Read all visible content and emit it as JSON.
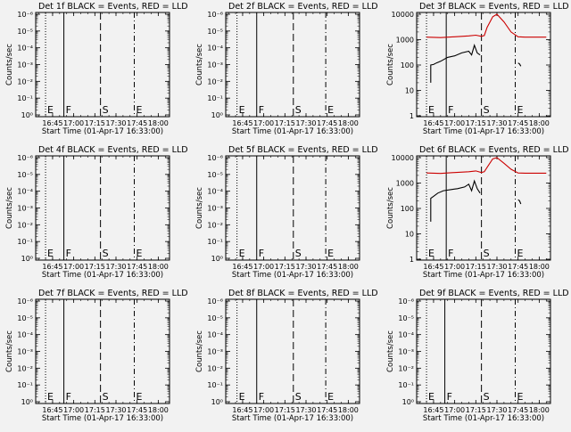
{
  "time_ticks": [
    "16:45",
    "17:00",
    "17:15",
    "17:30",
    "17:45",
    "18:00"
  ],
  "xlabel": "Start Time (01-Apr-17 16:33:00)",
  "ylabel": "Counts/sec",
  "colors": {
    "background": "#f2f2f2",
    "events": "#000000",
    "lld": "#cc0000"
  },
  "marker_line_styles": {
    "E1": "dotted",
    "F": "solid",
    "S": "dashed",
    "E2": "dash-dot"
  },
  "chart_data": [
    {
      "type": "line",
      "title": "Det 1f BLACK = Events, RED = LLD",
      "xlabel": "Start Time (01-Apr-17 16:33:00)",
      "ylabel": "Counts/sec",
      "y_scale": "log",
      "yticklabels": [
        "10⁰",
        "10⁻¹",
        "10⁻²",
        "10⁻³",
        "10⁻⁴",
        "10⁻⁵",
        "10⁻⁶"
      ],
      "markers": [
        {
          "label": "E",
          "time": "16:40"
        },
        {
          "label": "F",
          "time": "16:53"
        },
        {
          "label": "S",
          "time": "17:19"
        },
        {
          "label": "E",
          "time": "17:43"
        }
      ],
      "series": []
    },
    {
      "type": "line",
      "title": "Det 2f BLACK = Events, RED = LLD",
      "xlabel": "Start Time (01-Apr-17 16:33:00)",
      "ylabel": "Counts/sec",
      "y_scale": "log",
      "yticklabels": [
        "10⁰",
        "10⁻¹",
        "10⁻²",
        "10⁻³",
        "10⁻⁴",
        "10⁻⁵",
        "10⁻⁶"
      ],
      "markers": [
        {
          "label": "E",
          "time": "16:41"
        },
        {
          "label": "F",
          "time": "16:55"
        },
        {
          "label": "S",
          "time": "17:21"
        },
        {
          "label": "E",
          "time": "17:44"
        }
      ],
      "series": []
    },
    {
      "type": "line",
      "title": "Det 3f BLACK = Events, RED = LLD",
      "xlabel": "Start Time (01-Apr-17 16:33:00)",
      "ylabel": "Counts/sec",
      "y_scale": "log",
      "yticklabels": [
        "1",
        "10",
        "100",
        "1000",
        "10000"
      ],
      "markers": [
        {
          "label": "E",
          "time": "16:40"
        },
        {
          "label": "F",
          "time": "16:54"
        },
        {
          "label": "S",
          "time": "17:19"
        },
        {
          "label": "E",
          "time": "17:43"
        }
      ],
      "series": [
        {
          "color": "#cc0000",
          "segments": [
            [
              [
                "16:40",
                1250
              ],
              [
                "16:50",
                1200
              ],
              [
                "17:00",
                1300
              ],
              [
                "17:10",
                1400
              ],
              [
                "17:15",
                1500
              ],
              [
                "17:19",
                1350
              ],
              [
                "17:21",
                1450
              ],
              [
                "17:23",
                3000
              ],
              [
                "17:27",
                8000
              ],
              [
                "17:30",
                10000
              ],
              [
                "17:35",
                5000
              ],
              [
                "17:40",
                2000
              ],
              [
                "17:45",
                1300
              ],
              [
                "17:50",
                1250
              ],
              [
                "18:05",
                1250
              ]
            ]
          ]
        },
        {
          "color": "#000000",
          "segments": [
            [
              [
                "16:43",
                20
              ],
              [
                "16:43",
                100
              ],
              [
                "16:45",
                105
              ],
              [
                "16:47",
                120
              ],
              [
                "16:50",
                140
              ],
              [
                "16:55",
                200
              ],
              [
                "17:00",
                230
              ],
              [
                "17:05",
                300
              ],
              [
                "17:10",
                350
              ],
              [
                "17:12",
                250
              ],
              [
                "17:14",
                600
              ],
              [
                "17:16",
                300
              ],
              [
                "17:18",
                250
              ]
            ],
            [
              [
                "17:45",
                120
              ],
              [
                "17:46",
                110
              ],
              [
                "17:47",
                90
              ]
            ]
          ]
        }
      ]
    },
    {
      "type": "line",
      "title": "Det 4f BLACK = Events, RED = LLD",
      "xlabel": "Start Time (01-Apr-17 16:33:00)",
      "ylabel": "Counts/sec",
      "y_scale": "log",
      "yticklabels": [
        "10⁰",
        "10⁻¹",
        "10⁻²",
        "10⁻³",
        "10⁻⁴",
        "10⁻⁵",
        "10⁻⁶"
      ],
      "markers": [
        {
          "label": "E",
          "time": "16:40"
        },
        {
          "label": "F",
          "time": "16:53"
        },
        {
          "label": "S",
          "time": "17:19"
        },
        {
          "label": "E",
          "time": "17:43"
        }
      ],
      "series": []
    },
    {
      "type": "line",
      "title": "Det 5f BLACK = Events, RED = LLD",
      "xlabel": "Start Time (01-Apr-17 16:33:00)",
      "ylabel": "Counts/sec",
      "y_scale": "log",
      "yticklabels": [
        "10⁰",
        "10⁻¹",
        "10⁻²",
        "10⁻³",
        "10⁻⁴",
        "10⁻⁵",
        "10⁻⁶"
      ],
      "markers": [
        {
          "label": "E",
          "time": "16:41"
        },
        {
          "label": "F",
          "time": "16:55"
        },
        {
          "label": "S",
          "time": "17:21"
        },
        {
          "label": "E",
          "time": "17:44"
        }
      ],
      "series": []
    },
    {
      "type": "line",
      "title": "Det 6f BLACK = Events, RED = LLD",
      "xlabel": "Start Time (01-Apr-17 16:33:00)",
      "ylabel": "Counts/sec",
      "y_scale": "log",
      "yticklabels": [
        "1",
        "10",
        "100",
        "1000",
        "10000"
      ],
      "markers": [
        {
          "label": "E",
          "time": "16:40"
        },
        {
          "label": "F",
          "time": "16:54"
        },
        {
          "label": "S",
          "time": "17:19"
        },
        {
          "label": "E",
          "time": "17:43"
        }
      ],
      "series": [
        {
          "color": "#cc0000",
          "segments": [
            [
              [
                "16:40",
                2500
              ],
              [
                "16:50",
                2400
              ],
              [
                "17:00",
                2600
              ],
              [
                "17:10",
                2800
              ],
              [
                "17:15",
                3000
              ],
              [
                "17:19",
                2600
              ],
              [
                "17:21",
                2800
              ],
              [
                "17:24",
                5000
              ],
              [
                "17:27",
                9000
              ],
              [
                "17:30",
                10000
              ],
              [
                "17:35",
                6000
              ],
              [
                "17:40",
                3500
              ],
              [
                "17:45",
                2500
              ],
              [
                "17:50",
                2450
              ],
              [
                "18:05",
                2450
              ]
            ]
          ]
        },
        {
          "color": "#000000",
          "segments": [
            [
              [
                "16:43",
                30
              ],
              [
                "16:43",
                250
              ],
              [
                "16:45",
                300
              ],
              [
                "16:48",
                400
              ],
              [
                "16:52",
                500
              ],
              [
                "16:57",
                550
              ],
              [
                "17:02",
                600
              ],
              [
                "17:07",
                700
              ],
              [
                "17:10",
                900
              ],
              [
                "17:12",
                500
              ],
              [
                "17:14",
                1200
              ],
              [
                "17:16",
                600
              ],
              [
                "17:18",
                400
              ]
            ],
            [
              [
                "17:45",
                220
              ],
              [
                "17:46",
                200
              ],
              [
                "17:47",
                150
              ]
            ]
          ]
        }
      ]
    },
    {
      "type": "line",
      "title": "Det 7f BLACK = Events, RED = LLD",
      "xlabel": "Start Time (01-Apr-17 16:33:00)",
      "ylabel": "Counts/sec",
      "y_scale": "log",
      "yticklabels": [
        "10⁰",
        "10⁻¹",
        "10⁻²",
        "10⁻³",
        "10⁻⁴",
        "10⁻⁵",
        "10⁻⁶"
      ],
      "markers": [
        {
          "label": "E",
          "time": "16:40"
        },
        {
          "label": "F",
          "time": "16:53"
        },
        {
          "label": "S",
          "time": "17:19"
        },
        {
          "label": "E",
          "time": "17:43"
        }
      ],
      "series": []
    },
    {
      "type": "line",
      "title": "Det 8f BLACK = Events, RED = LLD",
      "xlabel": "Start Time (01-Apr-17 16:33:00)",
      "ylabel": "Counts/sec",
      "y_scale": "log",
      "yticklabels": [
        "10⁰",
        "10⁻¹",
        "10⁻²",
        "10⁻³",
        "10⁻⁴",
        "10⁻⁵",
        "10⁻⁶"
      ],
      "markers": [
        {
          "label": "E",
          "time": "16:41"
        },
        {
          "label": "F",
          "time": "16:55"
        },
        {
          "label": "S",
          "time": "17:21"
        },
        {
          "label": "E",
          "time": "17:44"
        }
      ],
      "series": []
    },
    {
      "type": "line",
      "title": "Det 9f BLACK = Events, RED = LLD",
      "xlabel": "Start Time (01-Apr-17 16:33:00)",
      "ylabel": "Counts/sec",
      "y_scale": "log",
      "yticklabels": [
        "10⁰",
        "10⁻¹",
        "10⁻²",
        "10⁻³",
        "10⁻⁴",
        "10⁻⁵",
        "10⁻⁶"
      ],
      "markers": [
        {
          "label": "E",
          "time": "16:40"
        },
        {
          "label": "F",
          "time": "16:53"
        },
        {
          "label": "S",
          "time": "17:19"
        },
        {
          "label": "E",
          "time": "17:43"
        }
      ],
      "series": []
    }
  ]
}
